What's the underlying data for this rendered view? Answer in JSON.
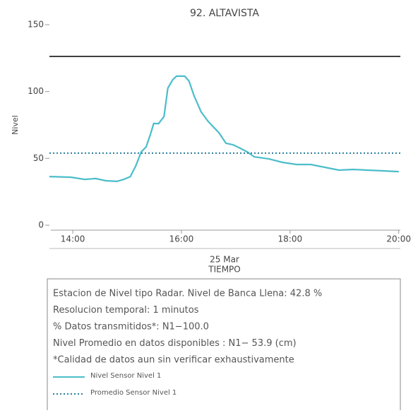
{
  "chart_data": {
    "type": "line",
    "title": "92. ALTAVISTA",
    "y_label": "Nivel",
    "x_sublabel": "25 Mar",
    "x_label": "TIEMPO",
    "xlim": [
      13.57,
      20.03
    ],
    "ylim": [
      0,
      150
    ],
    "xticks": [
      {
        "value": 14,
        "label": "14:00"
      },
      {
        "value": 16,
        "label": "16:00"
      },
      {
        "value": 18,
        "label": "18:00"
      },
      {
        "value": 20,
        "label": "20:00"
      }
    ],
    "yticks": [
      0,
      50,
      100,
      150
    ],
    "hlines": [
      {
        "value": 126.3,
        "color": "#000000"
      }
    ],
    "series": [
      {
        "name": "Nivel Sensor Nivel 1",
        "color": "#4bbdca",
        "style": "solid",
        "x": [
          13.57,
          13.96,
          14.22,
          14.42,
          14.61,
          14.81,
          14.94,
          15.06,
          15.16,
          15.26,
          15.35,
          15.43,
          15.49,
          15.58,
          15.68,
          15.75,
          15.84,
          15.91,
          16.06,
          16.14,
          16.23,
          16.36,
          16.49,
          16.69,
          16.82,
          16.95,
          17.08,
          17.21,
          17.34,
          17.6,
          17.86,
          18.12,
          18.38,
          18.64,
          18.9,
          19.16,
          19.42,
          19.68,
          20.0
        ],
        "values": [
          36.4,
          35.9,
          34.3,
          34.9,
          33.3,
          32.8,
          34.3,
          36.4,
          44.4,
          54.9,
          58.6,
          68.1,
          76.1,
          76.0,
          81.4,
          102.5,
          108.8,
          111.5,
          111.5,
          107.8,
          97.2,
          85.0,
          77.7,
          69.2,
          61.3,
          60.2,
          57.6,
          54.9,
          51.2,
          49.7,
          47.0,
          45.4,
          45.4,
          43.3,
          41.2,
          41.7,
          41.2,
          40.7,
          40.1
        ]
      },
      {
        "name": "Promedio Sensor Nivel 1",
        "color": "#2a7f9e",
        "style": "dotted",
        "x": [
          13.57,
          20.03
        ],
        "values": [
          53.9,
          53.9
        ]
      }
    ],
    "info_lines": [
      "Estacion de Nivel tipo Radar. Nivel de Banca Llena: 42.8 %",
      "Resolucion temporal: 1 minutos",
      "% Datos transmitidos*: N1−100.0",
      "Nivel Promedio en datos disponibles : N1− 53.9 (cm)",
      "*Calidad de datos aun sin verificar exhaustivamente"
    ]
  }
}
